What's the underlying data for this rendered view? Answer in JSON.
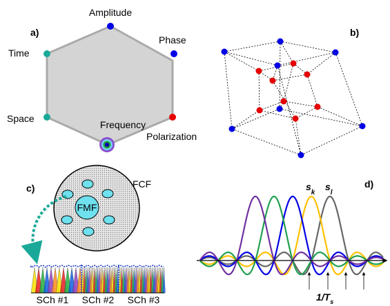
{
  "panels": {
    "a": {
      "label": "a)",
      "vertices": [
        "Amplitude",
        "Phase",
        "Polarization",
        "Frequency",
        "Space",
        "Time"
      ]
    },
    "b": {
      "label": "b)"
    },
    "c": {
      "label": "c)",
      "fiber": "FCF",
      "core": "FMF",
      "subchannels": [
        "SCh #1",
        "SCh #2",
        "SCh #3"
      ]
    },
    "d": {
      "label": "d)",
      "signals": [
        {
          "base": "s",
          "sub": "k"
        },
        {
          "base": "s",
          "sub": "l"
        }
      ],
      "period": {
        "base": "1/T",
        "sub": "s"
      }
    }
  }
}
